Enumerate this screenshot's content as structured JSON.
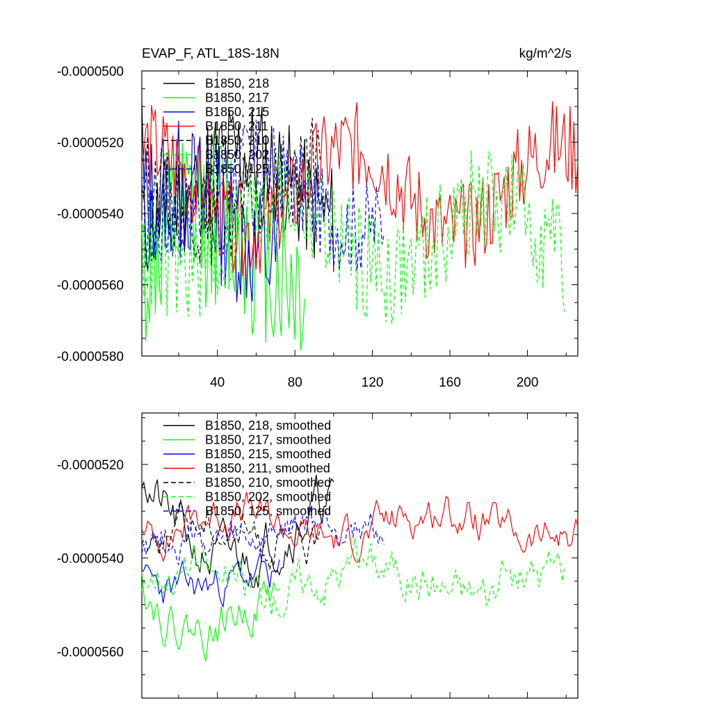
{
  "chart_data": [
    {
      "type": "line",
      "title": "EVAP_F, ATL_18S-18N",
      "units": "kg/m^2/s",
      "xlabel": "",
      "ylabel": "",
      "xlim": [
        1,
        226
      ],
      "ylim": [
        -5.8e-05,
        -5e-05
      ],
      "x_ticks": [
        40,
        80,
        120,
        160,
        200
      ],
      "x_tick_labels": [
        "40",
        "80",
        "120",
        "160",
        "200"
      ],
      "y_ticks": [
        -5.8e-05,
        -5.6e-05,
        -5.4e-05,
        -5.2e-05,
        -5e-05
      ],
      "y_tick_labels": [
        "-0.0000580",
        "-0.0000560",
        "-0.0000540",
        "-0.0000520",
        "-0.0000500"
      ],
      "legend": "top-left",
      "series": [
        {
          "name": "B1850, 218",
          "color": "#000000",
          "dash": "solid",
          "n": 100,
          "mean": -5.33e-05,
          "amp": 1e-06,
          "noise": 1.7e-06,
          "seed": 11,
          "start": -5.09e-05
        },
        {
          "name": "B1850, 217",
          "color": "#00ff00",
          "dash": "solid",
          "n": 85,
          "mean": -5.51e-05,
          "amp": 1e-06,
          "noise": 2.6e-06,
          "seed": 12,
          "start": -5.46e-05
        },
        {
          "name": "B1850, 215",
          "color": "#0000ff",
          "dash": "solid",
          "n": 72,
          "mean": -5.43e-05,
          "amp": 1e-06,
          "noise": 2e-06,
          "seed": 13,
          "start": -5.33e-05
        },
        {
          "name": "B1850, 211",
          "color": "#ff0000",
          "dash": "solid",
          "n": 226,
          "mean": -5.33e-05,
          "amp": 1.2e-06,
          "noise": 1.3e-06,
          "seed": 14,
          "start": -5.26e-05
        },
        {
          "name": "B1850, 210",
          "color": "#000000",
          "dash": "dashed",
          "n": 93,
          "mean": -5.34e-05,
          "amp": 8e-07,
          "noise": 1.3e-06,
          "seed": 15,
          "start": -5.33e-05
        },
        {
          "name": "B1850, 202",
          "color": "#00ff00",
          "dash": "dashed",
          "n": 219,
          "mean": -5.46e-05,
          "amp": 1e-06,
          "noise": 1.6e-06,
          "seed": 16,
          "start": -5.42e-05
        },
        {
          "name": "B1850, 125",
          "color": "#0000ff",
          "dash": "dashed",
          "n": 126,
          "mean": -5.35e-05,
          "amp": 9e-07,
          "noise": 1.3e-06,
          "seed": 17,
          "start": -5.32e-05
        }
      ]
    },
    {
      "type": "line",
      "title": "",
      "xlabel": "",
      "ylabel": "",
      "xlim": [
        1,
        226
      ],
      "ylim": [
        -5.7e-05,
        -5.09e-05
      ],
      "x_ticks": [
        40,
        80,
        120,
        160,
        200
      ],
      "y_ticks": [
        -5.6e-05,
        -5.4e-05,
        -5.2e-05
      ],
      "y_tick_labels": [
        "-0.0000560",
        "-0.0000540",
        "-0.0000520"
      ],
      "legend": "top-left",
      "series": [
        {
          "name": "B1850, 218, smoothed",
          "color": "#000000",
          "dash": "solid",
          "n": 100,
          "mean": -5.35e-05,
          "amp": 6e-07,
          "noise": 4e-07,
          "seed": 21,
          "start": -5.25e-05
        },
        {
          "name": "B1850, 217, smoothed",
          "color": "#00ff00",
          "dash": "solid",
          "n": 72,
          "mean": -5.51e-05,
          "amp": 5e-07,
          "noise": 3.5e-07,
          "seed": 22,
          "start": -5.43e-05
        },
        {
          "name": "B1850, 215, smoothed",
          "color": "#0000ff",
          "dash": "solid",
          "n": 72,
          "mean": -5.46e-05,
          "amp": 2e-07,
          "noise": 3e-07,
          "seed": 23,
          "start": -5.43e-05
        },
        {
          "name": "B1850, 211, smoothed",
          "color": "#ff0000",
          "dash": "solid",
          "n": 226,
          "mean": -5.33e-05,
          "amp": 3e-07,
          "noise": 3e-07,
          "seed": 24,
          "start": -5.34e-05
        },
        {
          "name": "B1850, 210, smoothed",
          "color": "#000000",
          "dash": "dashed",
          "n": 93,
          "mean": -5.35e-05,
          "amp": 3e-07,
          "noise": 3e-07,
          "seed": 25,
          "start": -5.37e-05
        },
        {
          "name": "B1850, 202, smoothed",
          "color": "#00ff00",
          "dash": "dashed",
          "n": 219,
          "mean": -5.44e-05,
          "amp": 3e-07,
          "noise": 3.5e-07,
          "seed": 26,
          "start": -5.47e-05
        },
        {
          "name": "B1850, 125, smoothed",
          "color": "#0000ff",
          "dash": "dashed",
          "n": 126,
          "mean": -5.35e-05,
          "amp": 3e-07,
          "noise": 3e-07,
          "seed": 27,
          "start": -5.39e-05
        }
      ]
    }
  ]
}
